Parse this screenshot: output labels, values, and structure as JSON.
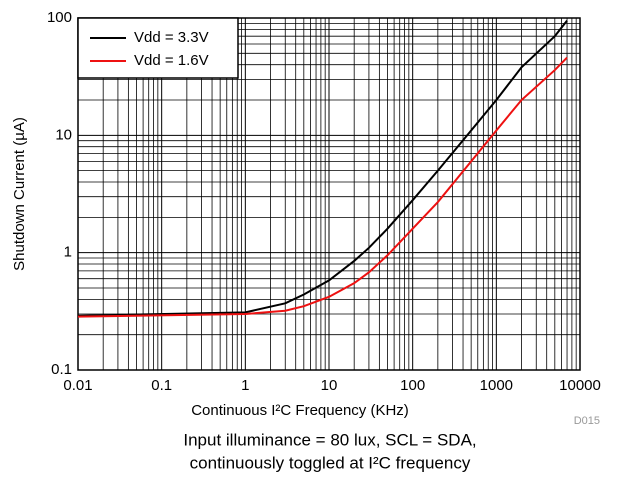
{
  "chart_data": {
    "type": "line",
    "x_label": "Continuous I²C Frequency (KHz)",
    "y_label": "Shutdown Current (µA)",
    "annotation": "D015",
    "caption": [
      "Input illuminance = 80 lux, SCL = SDA,",
      "continuously toggled at I²C frequency"
    ],
    "x": [
      0.01,
      1,
      3,
      5,
      10,
      20,
      30,
      50,
      100,
      200,
      500,
      1000,
      2000,
      5000,
      7000
    ],
    "series": [
      {
        "name": "Vdd = 3.3V",
        "color": "#000000",
        "values": [
          0.29,
          0.31,
          0.37,
          0.44,
          0.58,
          0.85,
          1.1,
          1.6,
          2.8,
          5,
          11,
          20,
          38,
          70,
          95
        ]
      },
      {
        "name": "Vdd = 1.6V",
        "color": "#ee1111",
        "values": [
          0.285,
          0.3,
          0.32,
          0.35,
          0.42,
          0.55,
          0.68,
          0.95,
          1.6,
          2.7,
          6,
          11,
          20,
          36,
          46
        ]
      }
    ],
    "xlim": [
      0.01,
      10000
    ],
    "xticks": [
      0.01,
      0.1,
      1,
      10,
      100,
      1000,
      10000
    ],
    "ylim": [
      0.1,
      100
    ],
    "yticks": [
      0.1,
      1,
      10,
      100
    ],
    "xscale": "log",
    "yscale": "log",
    "grid": true,
    "minor_grid": true,
    "legend": "upper left"
  }
}
